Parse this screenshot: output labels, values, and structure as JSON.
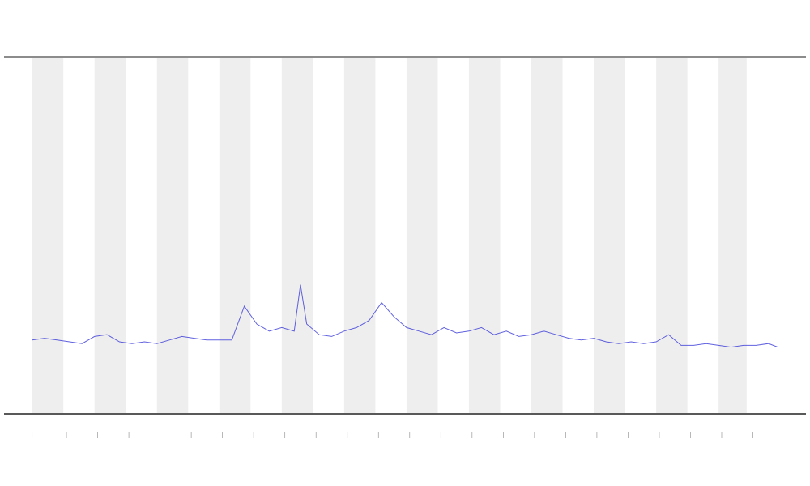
{
  "chart_data": {
    "type": "line",
    "xlim": [
      0,
      25.7
    ],
    "ylim": [
      0,
      100
    ],
    "xticks": [
      0.9,
      2,
      3,
      4,
      5,
      6,
      7,
      8,
      9,
      10,
      11,
      12,
      13,
      14,
      15,
      16,
      17,
      18,
      19,
      20,
      21,
      22,
      23,
      24
    ],
    "bands": [
      [
        0.9,
        1.9
      ],
      [
        2.9,
        3.9
      ],
      [
        4.9,
        5.9
      ],
      [
        6.9,
        7.9
      ],
      [
        8.9,
        9.9
      ],
      [
        10.9,
        11.9
      ],
      [
        12.9,
        13.9
      ],
      [
        14.9,
        15.9
      ],
      [
        16.9,
        17.9
      ],
      [
        18.9,
        19.9
      ],
      [
        20.9,
        21.9
      ],
      [
        22.9,
        23.8
      ]
    ],
    "band_color": "#eeeeee",
    "series": [
      {
        "color": "#3a3ad8",
        "x": [
          0.9,
          1.3,
          1.7,
          2.1,
          2.5,
          2.9,
          3.3,
          3.7,
          4.1,
          4.5,
          4.9,
          5.3,
          5.7,
          6.1,
          6.5,
          6.9,
          7.3,
          7.7,
          8.1,
          8.5,
          8.9,
          9.3,
          9.5,
          9.7,
          10.1,
          10.5,
          10.9,
          11.3,
          11.7,
          12.1,
          12.5,
          12.9,
          13.3,
          13.7,
          14.1,
          14.5,
          14.9,
          15.3,
          15.7,
          16.1,
          16.5,
          16.9,
          17.3,
          17.7,
          18.1,
          18.5,
          18.9,
          19.3,
          19.7,
          20.1,
          20.5,
          20.9,
          21.3,
          21.7,
          22.1,
          22.5,
          22.9,
          23.3,
          23.7,
          24.1,
          24.5,
          24.8
        ],
        "values": [
          20.5,
          21,
          20.5,
          20,
          19.5,
          21.5,
          22,
          20,
          19.5,
          20,
          19.5,
          20.5,
          21.5,
          21,
          20.5,
          20.5,
          20.5,
          30,
          25,
          23,
          24,
          23,
          36,
          25,
          22,
          21.5,
          23,
          24,
          26,
          31,
          27,
          24,
          23,
          22,
          24,
          22.5,
          23,
          24,
          22,
          23,
          21.5,
          22,
          23,
          22,
          21,
          20.5,
          21,
          20,
          19.5,
          20,
          19.5,
          20,
          22,
          19,
          19,
          19.5,
          19,
          18.5,
          19,
          19,
          19.5,
          18.5
        ]
      }
    ]
  }
}
